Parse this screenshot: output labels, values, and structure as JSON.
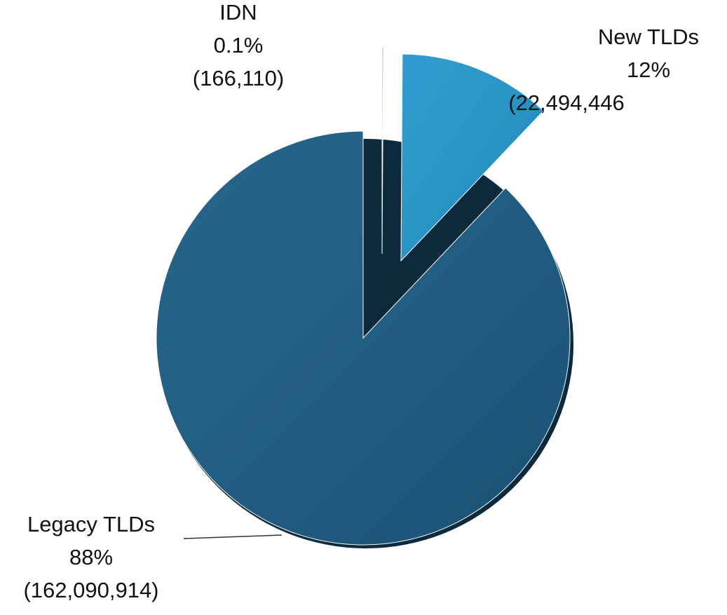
{
  "chart_data": {
    "type": "pie",
    "categories": [
      "IDN",
      "New TLDs",
      "Legacy TLDs"
    ],
    "values": [
      0.1,
      12,
      88
    ],
    "value_labels": [
      "0.1%",
      "12%",
      "88%"
    ],
    "count_labels": [
      "(166,110)",
      "(22,494,446",
      "(162,090,914)"
    ],
    "colors": [
      "#9fb4bd",
      "#2196cc",
      "#195a82"
    ]
  }
}
